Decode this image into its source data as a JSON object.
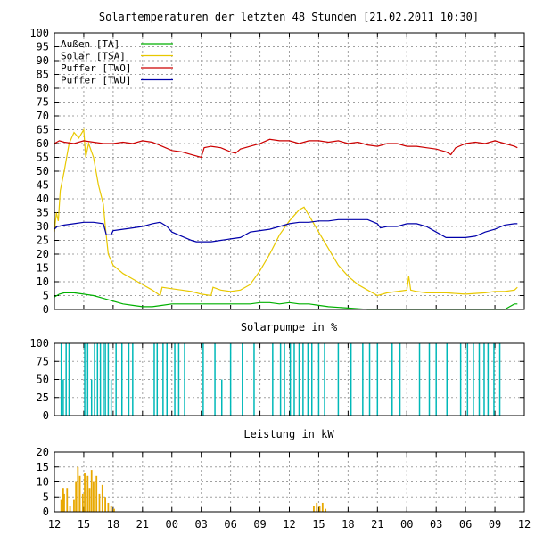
{
  "chart_data": [
    {
      "type": "line",
      "title": "Solartemperaturen der letzten 48 Stunden [21.02.2011 10:30]",
      "xlabel": "",
      "ylabel": "",
      "ylim": [
        0,
        100
      ],
      "xlim": [
        0,
        48
      ],
      "yticks": [
        0,
        5,
        10,
        15,
        20,
        25,
        30,
        35,
        40,
        45,
        50,
        55,
        60,
        65,
        70,
        75,
        80,
        85,
        90,
        95,
        100
      ],
      "grid": true,
      "legend_position": "top-left",
      "series": [
        {
          "name": "Außen   [TA]",
          "color": "#00b000",
          "values": [
            [
              0,
              4.5
            ],
            [
              0.5,
              5.5
            ],
            [
              1,
              6
            ],
            [
              2,
              6
            ],
            [
              3,
              5.5
            ],
            [
              4,
              5
            ],
            [
              5,
              4
            ],
            [
              6,
              3
            ],
            [
              7,
              2
            ],
            [
              8,
              1.5
            ],
            [
              9,
              1
            ],
            [
              10,
              1
            ],
            [
              11,
              1.5
            ],
            [
              12,
              2
            ],
            [
              15,
              2
            ],
            [
              18,
              2
            ],
            [
              20,
              2
            ],
            [
              21,
              2.5
            ],
            [
              22,
              2.5
            ],
            [
              23,
              2
            ],
            [
              24,
              2.5
            ],
            [
              25,
              2
            ],
            [
              26,
              2
            ],
            [
              27,
              1.5
            ],
            [
              28,
              1
            ],
            [
              30,
              0.5
            ],
            [
              32,
              0
            ],
            [
              46,
              0
            ],
            [
              46.5,
              1
            ],
            [
              47,
              2
            ],
            [
              47.3,
              2
            ]
          ]
        },
        {
          "name": "Solar  [TSA]",
          "color": "#e8c800",
          "values": [
            [
              0,
              28
            ],
            [
              0.2,
              35
            ],
            [
              0.4,
              32
            ],
            [
              0.6,
              43
            ],
            [
              1,
              50
            ],
            [
              1.5,
              60
            ],
            [
              2,
              64
            ],
            [
              2.5,
              62
            ],
            [
              3,
              65
            ],
            [
              3.2,
              55
            ],
            [
              3.5,
              60
            ],
            [
              4,
              55
            ],
            [
              4.5,
              45
            ],
            [
              5,
              38
            ],
            [
              5.2,
              30
            ],
            [
              5.5,
              20
            ],
            [
              6,
              16
            ],
            [
              7,
              13
            ],
            [
              8,
              11
            ],
            [
              9,
              9
            ],
            [
              10,
              7
            ],
            [
              10.8,
              5
            ],
            [
              11,
              8
            ],
            [
              12,
              7.5
            ],
            [
              13,
              7
            ],
            [
              14,
              6.5
            ],
            [
              15,
              5.5
            ],
            [
              16,
              5
            ],
            [
              16.2,
              8
            ],
            [
              17,
              7
            ],
            [
              18,
              6.5
            ],
            [
              19,
              7
            ],
            [
              20,
              9
            ],
            [
              21,
              14
            ],
            [
              22,
              20
            ],
            [
              23,
              27
            ],
            [
              24,
              32
            ],
            [
              25,
              36
            ],
            [
              25.5,
              37
            ],
            [
              26,
              34
            ],
            [
              27,
              28
            ],
            [
              28,
              22
            ],
            [
              29,
              16
            ],
            [
              30,
              12
            ],
            [
              31,
              9
            ],
            [
              32,
              7
            ],
            [
              33,
              5
            ],
            [
              34,
              6
            ],
            [
              35,
              6.5
            ],
            [
              36,
              7
            ],
            [
              36.2,
              12
            ],
            [
              36.4,
              7
            ],
            [
              37,
              6.5
            ],
            [
              38,
              6
            ],
            [
              40,
              6
            ],
            [
              42,
              5.5
            ],
            [
              44,
              6
            ],
            [
              45,
              6.5
            ],
            [
              46,
              6.5
            ],
            [
              47,
              7
            ],
            [
              47.3,
              8
            ]
          ]
        },
        {
          "name": "Puffer [TWO]",
          "color": "#cc0000",
          "values": [
            [
              0,
              60
            ],
            [
              0.5,
              61
            ],
            [
              1,
              60.5
            ],
            [
              2,
              60
            ],
            [
              3,
              61
            ],
            [
              4,
              60.5
            ],
            [
              5,
              60
            ],
            [
              6,
              60
            ],
            [
              7,
              60.5
            ],
            [
              8,
              60
            ],
            [
              9,
              61
            ],
            [
              10,
              60.5
            ],
            [
              11,
              59
            ],
            [
              12,
              57.5
            ],
            [
              13,
              57
            ],
            [
              14,
              56
            ],
            [
              15,
              55
            ],
            [
              15.3,
              58.5
            ],
            [
              16,
              59
            ],
            [
              17,
              58.5
            ],
            [
              18,
              57
            ],
            [
              18.5,
              56.5
            ],
            [
              19,
              58
            ],
            [
              20,
              59
            ],
            [
              21,
              60
            ],
            [
              22,
              61.5
            ],
            [
              23,
              61
            ],
            [
              24,
              61
            ],
            [
              25,
              60
            ],
            [
              26,
              61
            ],
            [
              27,
              61
            ],
            [
              28,
              60.5
            ],
            [
              29,
              61
            ],
            [
              30,
              60
            ],
            [
              31,
              60.5
            ],
            [
              32,
              59.5
            ],
            [
              33,
              59
            ],
            [
              34,
              60
            ],
            [
              35,
              60
            ],
            [
              36,
              59
            ],
            [
              37,
              59
            ],
            [
              38,
              58.5
            ],
            [
              39,
              58
            ],
            [
              40,
              57
            ],
            [
              40.5,
              56
            ],
            [
              41,
              58.5
            ],
            [
              42,
              60
            ],
            [
              43,
              60.5
            ],
            [
              44,
              60
            ],
            [
              45,
              61
            ],
            [
              46,
              60
            ],
            [
              47,
              59
            ],
            [
              47.3,
              58.5
            ]
          ]
        },
        {
          "name": "Puffer [TWU]",
          "color": "#0000aa",
          "values": [
            [
              0,
              29
            ],
            [
              0.3,
              30
            ],
            [
              1,
              30.5
            ],
            [
              2,
              31
            ],
            [
              3,
              31.5
            ],
            [
              4,
              31.5
            ],
            [
              5,
              31
            ],
            [
              5.3,
              27
            ],
            [
              5.8,
              27
            ],
            [
              6,
              28.5
            ],
            [
              7,
              29
            ],
            [
              8,
              29.5
            ],
            [
              9,
              30
            ],
            [
              10,
              31
            ],
            [
              10.8,
              31.5
            ],
            [
              11.5,
              30
            ],
            [
              12,
              28
            ],
            [
              13,
              26.5
            ],
            [
              14,
              25
            ],
            [
              14.5,
              24.5
            ],
            [
              15,
              24.5
            ],
            [
              16,
              24.5
            ],
            [
              17,
              25
            ],
            [
              18,
              25.5
            ],
            [
              19,
              26
            ],
            [
              20,
              28
            ],
            [
              21,
              28.5
            ],
            [
              22,
              29
            ],
            [
              23,
              30
            ],
            [
              24,
              31
            ],
            [
              25,
              31.5
            ],
            [
              26,
              31.5
            ],
            [
              27,
              32
            ],
            [
              28,
              32
            ],
            [
              29,
              32.5
            ],
            [
              30,
              32.5
            ],
            [
              31,
              32.5
            ],
            [
              32,
              32.5
            ],
            [
              33,
              31
            ],
            [
              33.3,
              29.5
            ],
            [
              34,
              30
            ],
            [
              35,
              30
            ],
            [
              36,
              31
            ],
            [
              37,
              31
            ],
            [
              38,
              30
            ],
            [
              39,
              28
            ],
            [
              40,
              26
            ],
            [
              41,
              26
            ],
            [
              42,
              26
            ],
            [
              43,
              26.5
            ],
            [
              44,
              28
            ],
            [
              45,
              29
            ],
            [
              46,
              30.5
            ],
            [
              47,
              31
            ],
            [
              47.3,
              31
            ]
          ]
        }
      ]
    },
    {
      "type": "bar",
      "title": "Solarpumpe in %",
      "xlabel": "",
      "ylabel": "",
      "ylim": [
        0,
        100
      ],
      "xlim": [
        0,
        48
      ],
      "yticks": [
        0,
        25,
        50,
        75,
        100
      ],
      "grid": true,
      "color": "#00b8b8",
      "pulses": [
        [
          0.7,
          100
        ],
        [
          0.9,
          50
        ],
        [
          1.2,
          100
        ],
        [
          1.5,
          100
        ],
        [
          3.1,
          100
        ],
        [
          3.4,
          100
        ],
        [
          3.8,
          50
        ],
        [
          4.1,
          100
        ],
        [
          4.4,
          100
        ],
        [
          4.7,
          100
        ],
        [
          5.0,
          100
        ],
        [
          5.2,
          100
        ],
        [
          5.5,
          100
        ],
        [
          5.8,
          50
        ],
        [
          6.3,
          100
        ],
        [
          6.9,
          100
        ],
        [
          7.6,
          100
        ],
        [
          8.0,
          100
        ],
        [
          10.2,
          100
        ],
        [
          10.5,
          100
        ],
        [
          11.1,
          100
        ],
        [
          11.5,
          100
        ],
        [
          12.3,
          100
        ],
        [
          12.7,
          100
        ],
        [
          13.3,
          100
        ],
        [
          15.2,
          100
        ],
        [
          16.4,
          100
        ],
        [
          17.1,
          50
        ],
        [
          18.0,
          100
        ],
        [
          19.2,
          100
        ],
        [
          20.4,
          100
        ],
        [
          22.3,
          100
        ],
        [
          23.1,
          100
        ],
        [
          23.5,
          100
        ],
        [
          24.1,
          100
        ],
        [
          24.5,
          100
        ],
        [
          25.0,
          100
        ],
        [
          25.4,
          100
        ],
        [
          25.9,
          100
        ],
        [
          26.3,
          100
        ],
        [
          27.0,
          100
        ],
        [
          27.6,
          100
        ],
        [
          29.0,
          100
        ],
        [
          30.3,
          100
        ],
        [
          31.5,
          100
        ],
        [
          32.2,
          100
        ],
        [
          33.0,
          100
        ],
        [
          34.5,
          100
        ],
        [
          35.3,
          100
        ],
        [
          37.3,
          100
        ],
        [
          38.3,
          100
        ],
        [
          39.0,
          100
        ],
        [
          40.1,
          100
        ],
        [
          41.5,
          100
        ],
        [
          42.2,
          100
        ],
        [
          42.8,
          100
        ],
        [
          43.4,
          100
        ],
        [
          43.9,
          100
        ],
        [
          44.3,
          100
        ],
        [
          44.9,
          100
        ],
        [
          45.5,
          100
        ]
      ]
    },
    {
      "type": "bar",
      "title": "Leistung in kW",
      "xlabel": "",
      "ylabel": "",
      "ylim": [
        0,
        20
      ],
      "xlim": [
        0,
        48
      ],
      "yticks": [
        0,
        5,
        10,
        15,
        20
      ],
      "xticks": [
        "12",
        "15",
        "18",
        "21",
        "00",
        "03",
        "06",
        "09",
        "12",
        "15",
        "18",
        "21",
        "00",
        "03",
        "06",
        "09",
        "12"
      ],
      "grid": true,
      "color": "#e8a800",
      "pulses": [
        [
          0.7,
          4
        ],
        [
          0.9,
          8
        ],
        [
          1.0,
          6
        ],
        [
          1.3,
          8
        ],
        [
          1.6,
          2
        ],
        [
          2.0,
          4
        ],
        [
          2.2,
          10
        ],
        [
          2.4,
          15
        ],
        [
          2.6,
          12
        ],
        [
          2.9,
          6
        ],
        [
          3.1,
          13
        ],
        [
          3.4,
          12
        ],
        [
          3.6,
          8
        ],
        [
          3.8,
          14
        ],
        [
          4.0,
          10
        ],
        [
          4.3,
          12
        ],
        [
          4.6,
          6
        ],
        [
          4.9,
          9
        ],
        [
          5.2,
          5
        ],
        [
          5.5,
          3
        ],
        [
          5.8,
          2
        ],
        [
          6.1,
          1
        ],
        [
          26.5,
          2
        ],
        [
          26.8,
          3
        ],
        [
          27.1,
          2
        ],
        [
          27.4,
          3
        ],
        [
          27.7,
          1
        ]
      ]
    }
  ]
}
